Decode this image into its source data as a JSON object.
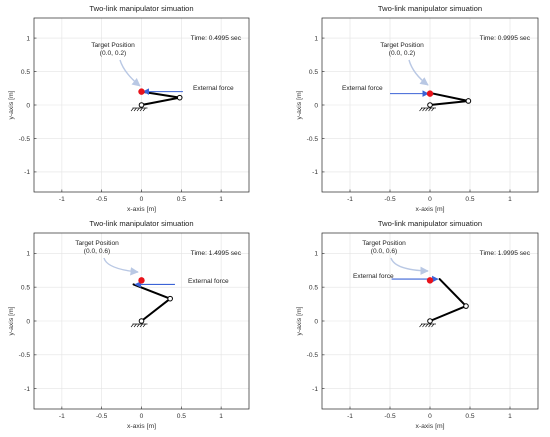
{
  "colors": {
    "link": "#000000",
    "target": "#e8131b",
    "force": "#3b63d6",
    "callout": "#b9c8e4",
    "grid": "#e3e3e3",
    "axes": "#262626"
  },
  "chart_data": [
    {
      "type": "line",
      "title": "Two-link manipulator simuation",
      "xlabel": "x-axis [m]",
      "ylabel": "y-axis [m]",
      "xlim": [
        -1.35,
        1.35
      ],
      "ylim": [
        -1.3,
        1.3
      ],
      "xticks": [
        -1,
        -0.5,
        0,
        0.5,
        1
      ],
      "yticks": [
        -1,
        -0.5,
        0,
        0.5,
        1
      ],
      "grid": true,
      "time_label": "Time: 0.4995 sec",
      "target_label": "Target Position",
      "target_coords": "(0.0, 0.2)",
      "force_label": "External force",
      "arm": {
        "base": [
          0,
          0
        ],
        "elbow": [
          0.48,
          0.11
        ],
        "tip": [
          0.0,
          0.2
        ]
      },
      "target": [
        0.0,
        0.2
      ],
      "force": {
        "from": [
          0.52,
          0.2
        ],
        "to": [
          0.02,
          0.2
        ]
      }
    },
    {
      "type": "line",
      "title": "Two-link manipulator simuation",
      "xlabel": "x-axis [m]",
      "ylabel": "y-axis [m]",
      "xlim": [
        -1.35,
        1.35
      ],
      "ylim": [
        -1.3,
        1.3
      ],
      "xticks": [
        -1,
        -0.5,
        0,
        0.5,
        1
      ],
      "yticks": [
        -1,
        -0.5,
        0,
        0.5,
        1
      ],
      "grid": true,
      "time_label": "Time: 0.9995 sec",
      "target_label": "Target Position",
      "target_coords": "(0.0, 0.2)",
      "force_label": "External force",
      "arm": {
        "base": [
          0,
          0
        ],
        "elbow": [
          0.48,
          0.06
        ],
        "tip": [
          0.0,
          0.18
        ]
      },
      "target": [
        0.0,
        0.17
      ],
      "force": {
        "from": [
          -0.5,
          0.17
        ],
        "to": [
          -0.02,
          0.17
        ]
      }
    },
    {
      "type": "line",
      "title": "Two-link manipulator simuation",
      "xlabel": "x-axis [m]",
      "ylabel": "y-axis [m]",
      "xlim": [
        -1.35,
        1.35
      ],
      "ylim": [
        -1.3,
        1.3
      ],
      "xticks": [
        -1,
        -0.5,
        0,
        0.5,
        1
      ],
      "yticks": [
        -1,
        -0.5,
        0,
        0.5,
        1
      ],
      "grid": true,
      "time_label": "Time: 1.4995 sec",
      "target_label": "Target Position",
      "target_coords": "(0.0, 0.6)",
      "force_label": "External force",
      "arm": {
        "base": [
          0,
          0
        ],
        "elbow": [
          0.36,
          0.33
        ],
        "tip": [
          -0.1,
          0.54
        ]
      },
      "target": [
        0.0,
        0.6
      ],
      "force": {
        "from": [
          0.42,
          0.54
        ],
        "to": [
          -0.08,
          0.54
        ]
      }
    },
    {
      "type": "line",
      "title": "Two-link manipulator simuation",
      "xlabel": "x-axis [m]",
      "ylabel": "y-axis [m]",
      "xlim": [
        -1.35,
        1.35
      ],
      "ylim": [
        -1.3,
        1.3
      ],
      "xticks": [
        -1,
        -0.5,
        0,
        0.5,
        1
      ],
      "yticks": [
        -1,
        -0.5,
        0,
        0.5,
        1
      ],
      "grid": true,
      "time_label": "Time: 1.9995 sec",
      "target_label": "Target Position",
      "target_coords": "(0.0, 0.6)",
      "force_label": "External force",
      "arm": {
        "base": [
          0,
          0
        ],
        "elbow": [
          0.45,
          0.22
        ],
        "tip": [
          0.12,
          0.62
        ]
      },
      "target": [
        0.0,
        0.6
      ],
      "force": {
        "from": [
          -0.48,
          0.62
        ],
        "to": [
          0.1,
          0.62
        ]
      }
    }
  ]
}
